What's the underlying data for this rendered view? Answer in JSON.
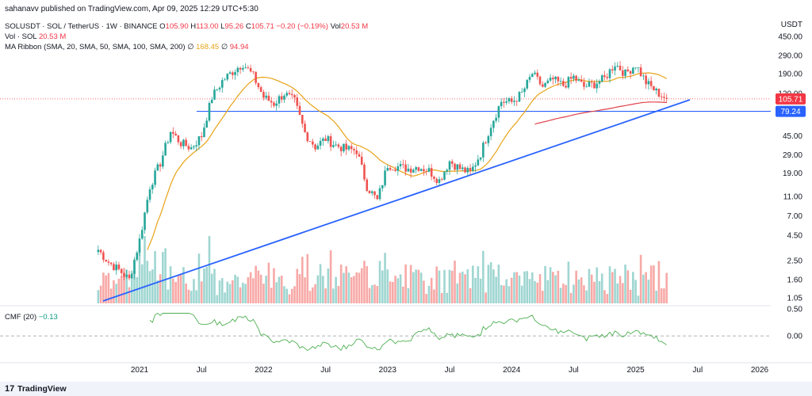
{
  "header": {
    "published": "sahanavv published on TradingView.com, Apr 09, 2025 12:29 UTC+5:30",
    "symbol": "SOLUSDT · SOL / TetherUS · 1W · BINANCE",
    "o_label": "O",
    "o": "105.90",
    "h_label": "H",
    "h": "113.00",
    "l_label": "L",
    "l": "95.26",
    "c_label": "C",
    "c": "105.71",
    "change": "−0.20 (−0.19%)",
    "vol_label": "Vol",
    "vol": "20.53 M",
    "vol_line_label": "Vol · SOL",
    "vol_line_value": "20.53 M",
    "ma_label": "MA Ribbon (SMA, 20, SMA, 50, SMA, 100, SMA, 200)",
    "ma_v1_sym": "∅",
    "ma_v1": "168.45",
    "ma_v2_sym": "∅",
    "ma_v2": "94.94",
    "cmf_label": "CMF (20)",
    "cmf_value": "−0.13"
  },
  "footer": {
    "brand": "TradingView",
    "logo": "17"
  },
  "colors": {
    "up": "#26a69a",
    "down": "#ef5350",
    "vol_up": "#9fd6d1",
    "vol_down": "#f7a9a7",
    "ma_short": "#e8a317",
    "ma_long": "#e0424a",
    "trend": "#2962ff",
    "hline": "#2962ff",
    "cmf": "#4caf50",
    "price_badge": "#f23645",
    "hline_badge": "#2962ff"
  },
  "chart_data": {
    "type": "candlestick",
    "price_axis": {
      "currency": "USDT",
      "scale": "log",
      "ticks": [
        "450.00",
        "290.00",
        "190.00",
        "120.00",
        "79.24",
        "45.00",
        "29.00",
        "19.00",
        "11.00",
        "7.00",
        "4.50",
        "2.50",
        "1.60",
        "1.05"
      ],
      "last_price": "105.71",
      "horizontal_level": "79.24"
    },
    "time_axis": {
      "labels": [
        "2021",
        "Jul",
        "2022",
        "Jul",
        "2023",
        "Jul",
        "2024",
        "Jul",
        "2025",
        "Jul",
        "2026"
      ]
    },
    "price_path": [
      {
        "date": "2020-09",
        "close": 3.2
      },
      {
        "date": "2020-10",
        "close": 2.4
      },
      {
        "date": "2020-11",
        "close": 2.0
      },
      {
        "date": "2020-12",
        "close": 1.6
      },
      {
        "date": "2021-01",
        "close": 4.0
      },
      {
        "date": "2021-02",
        "close": 14.0
      },
      {
        "date": "2021-03",
        "close": 24.0
      },
      {
        "date": "2021-04",
        "close": 50.0
      },
      {
        "date": "2021-05",
        "close": 38.0
      },
      {
        "date": "2021-06",
        "close": 34.0
      },
      {
        "date": "2021-07",
        "close": 45.0
      },
      {
        "date": "2021-08",
        "close": 110.0
      },
      {
        "date": "2021-09",
        "close": 160.0
      },
      {
        "date": "2021-10",
        "close": 200.0
      },
      {
        "date": "2021-11",
        "close": 240.0
      },
      {
        "date": "2021-12",
        "close": 180.0
      },
      {
        "date": "2022-01",
        "close": 110.0
      },
      {
        "date": "2022-02",
        "close": 95.0
      },
      {
        "date": "2022-03",
        "close": 120.0
      },
      {
        "date": "2022-04",
        "close": 100.0
      },
      {
        "date": "2022-05",
        "close": 48.0
      },
      {
        "date": "2022-06",
        "close": 35.0
      },
      {
        "date": "2022-07",
        "close": 42.0
      },
      {
        "date": "2022-08",
        "close": 36.0
      },
      {
        "date": "2022-09",
        "close": 33.0
      },
      {
        "date": "2022-10",
        "close": 32.0
      },
      {
        "date": "2022-11",
        "close": 14.0
      },
      {
        "date": "2022-12",
        "close": 10.0
      },
      {
        "date": "2023-01",
        "close": 23.0
      },
      {
        "date": "2023-02",
        "close": 22.0
      },
      {
        "date": "2023-03",
        "close": 21.0
      },
      {
        "date": "2023-04",
        "close": 22.0
      },
      {
        "date": "2023-05",
        "close": 20.0
      },
      {
        "date": "2023-06",
        "close": 16.0
      },
      {
        "date": "2023-07",
        "close": 25.0
      },
      {
        "date": "2023-08",
        "close": 21.0
      },
      {
        "date": "2023-09",
        "close": 19.0
      },
      {
        "date": "2023-10",
        "close": 30.0
      },
      {
        "date": "2023-11",
        "close": 58.0
      },
      {
        "date": "2023-12",
        "close": 100.0
      },
      {
        "date": "2024-01",
        "close": 98.0
      },
      {
        "date": "2024-02",
        "close": 120.0
      },
      {
        "date": "2024-03",
        "close": 190.0
      },
      {
        "date": "2024-04",
        "close": 140.0
      },
      {
        "date": "2024-05",
        "close": 165.0
      },
      {
        "date": "2024-06",
        "close": 145.0
      },
      {
        "date": "2024-07",
        "close": 175.0
      },
      {
        "date": "2024-08",
        "close": 140.0
      },
      {
        "date": "2024-09",
        "close": 150.0
      },
      {
        "date": "2024-10",
        "close": 170.0
      },
      {
        "date": "2024-11",
        "close": 240.0
      },
      {
        "date": "2024-12",
        "close": 190.0
      },
      {
        "date": "2025-01",
        "close": 235.0
      },
      {
        "date": "2025-02",
        "close": 155.0
      },
      {
        "date": "2025-03",
        "close": 125.0
      },
      {
        "date": "2025-04",
        "close": 105.71
      }
    ],
    "cmf": {
      "ticks": [
        "0.50",
        "0.00"
      ],
      "last": "−0.13"
    }
  }
}
